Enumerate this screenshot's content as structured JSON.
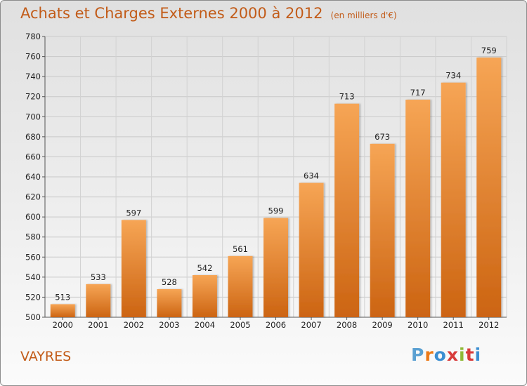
{
  "title": "Achats et Charges Externes 2000 à 2012",
  "unit": "(en milliers d'€)",
  "location": "VAYRES",
  "logo": {
    "letters": [
      "P",
      "r",
      "o",
      "x",
      "i",
      "t",
      "i"
    ],
    "colors": [
      "#5aa0d2",
      "#ec7a18",
      "#3b8ed1",
      "#d83b3b",
      "#8fb936",
      "#d83b3b",
      "#3b8ed1"
    ]
  },
  "colors": {
    "bar_light": "#f6a555",
    "bar_dark": "#cc6412",
    "title": "#c25b18"
  },
  "chart_data": {
    "type": "bar",
    "title": "Achats et Charges Externes 2000 à 2012",
    "subtitle": "(en milliers d'€)",
    "xlabel": "",
    "ylabel": "",
    "categories": [
      "2000",
      "2001",
      "2002",
      "2003",
      "2004",
      "2005",
      "2006",
      "2007",
      "2008",
      "2009",
      "2010",
      "2011",
      "2012"
    ],
    "values": [
      513,
      533,
      597,
      528,
      542,
      561,
      599,
      634,
      713,
      673,
      717,
      734,
      759
    ],
    "ylim": [
      500,
      780
    ],
    "yticks": [
      500,
      520,
      540,
      560,
      580,
      600,
      620,
      640,
      660,
      680,
      700,
      720,
      740,
      760,
      780
    ],
    "grid": true,
    "legend": "none"
  }
}
